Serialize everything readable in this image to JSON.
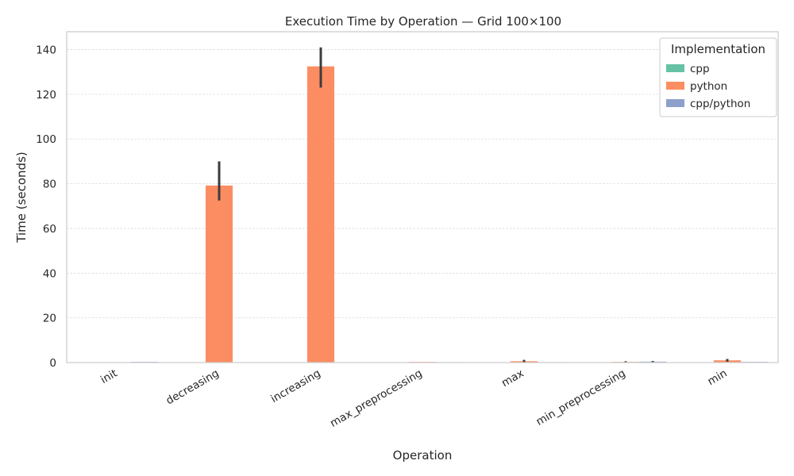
{
  "chart_data": {
    "type": "bar",
    "title": "Execution Time by Operation — Grid 100×100",
    "xlabel": "Operation",
    "ylabel": "Time (seconds)",
    "ylim": [
      0,
      148
    ],
    "yticks": [
      0,
      20,
      40,
      60,
      80,
      100,
      120,
      140
    ],
    "grid": "horizontal",
    "legend_title": "Implementation",
    "legend_position": "top-right",
    "categories": [
      "init",
      "decreasing",
      "increasing",
      "max_preprocessing",
      "max",
      "min_preprocessing",
      "min"
    ],
    "series": [
      {
        "name": "cpp",
        "color": "#66c2a5",
        "values": [
          0.01,
          0.05,
          0.08,
          0.05,
          0.1,
          0.1,
          0.1
        ],
        "err_low": [
          null,
          null,
          null,
          null,
          null,
          null,
          null
        ],
        "err_high": [
          null,
          null,
          null,
          null,
          null,
          null,
          null
        ]
      },
      {
        "name": "python",
        "color": "#fc8d62",
        "values": [
          0.02,
          79.2,
          132.5,
          0.3,
          0.6,
          0.3,
          1.0
        ],
        "err_low": [
          null,
          72.5,
          123.0,
          null,
          0.2,
          0.1,
          0.4
        ],
        "err_high": [
          null,
          90.0,
          141.0,
          null,
          1.2,
          0.6,
          1.6
        ]
      },
      {
        "name": "cpp/python",
        "color": "#8da0cb",
        "values": [
          0.3,
          0.01,
          0.01,
          0.2,
          0.2,
          0.4,
          0.3
        ],
        "err_low": [
          null,
          null,
          null,
          null,
          null,
          0.1,
          null
        ],
        "err_high": [
          null,
          null,
          null,
          null,
          null,
          0.7,
          null
        ]
      }
    ]
  }
}
